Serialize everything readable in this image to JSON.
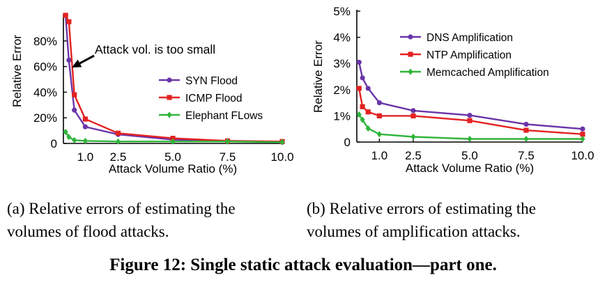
{
  "figure_caption": "Figure 12: Single static attack evaluation—part one.",
  "colors": {
    "syn": "#6a35a8",
    "icmp": "#e32222",
    "elephant": "#2fb53a"
  },
  "chart_data": [
    {
      "id": "a",
      "type": "line",
      "caption_lines": [
        "(a)  Relative errors of estimating the",
        "volumes of flood attacks."
      ],
      "xlabel": "Attack Volume Ratio (%)",
      "ylabel": "Relative Error",
      "xlim": [
        0,
        10
      ],
      "ylim": [
        0,
        100
      ],
      "xticks": [
        {
          "v": 1.0,
          "label": "1.0"
        },
        {
          "v": 2.5,
          "label": "2.5"
        },
        {
          "v": 5.0,
          "label": "5.0"
        },
        {
          "v": 7.5,
          "label": "7.5"
        },
        {
          "v": 10.0,
          "label": "10.0"
        }
      ],
      "yticks": [
        {
          "v": 0,
          "label": "0"
        },
        {
          "v": 20,
          "label": "20%"
        },
        {
          "v": 40,
          "label": "40%"
        },
        {
          "v": 60,
          "label": "60%"
        },
        {
          "v": 80,
          "label": "80%"
        }
      ],
      "grid": false,
      "legend": "center-right",
      "annotation": "Attack vol. is too small",
      "series": [
        {
          "name": "SYN Flood",
          "color_key": "syn",
          "marker": "circle",
          "x": [
            0.1,
            0.25,
            0.5,
            1.0,
            2.5,
            5.0,
            7.5,
            10.0
          ],
          "y": [
            100,
            65,
            26,
            13,
            7,
            3,
            2,
            1
          ]
        },
        {
          "name": "ICMP Flood",
          "color_key": "icmp",
          "marker": "square",
          "x": [
            0.1,
            0.25,
            0.5,
            1.0,
            2.5,
            5.0,
            7.5,
            10.0
          ],
          "y": [
            100,
            95,
            38,
            19,
            8,
            4,
            2,
            1.5
          ]
        },
        {
          "name": "Elephant FLows",
          "color_key": "elephant",
          "marker": "diamond",
          "x": [
            0.1,
            0.25,
            0.5,
            1.0,
            2.5,
            5.0,
            7.5,
            10.0
          ],
          "y": [
            9,
            5,
            2.5,
            2,
            1.5,
            1.5,
            1.5,
            1
          ]
        }
      ]
    },
    {
      "id": "b",
      "type": "line",
      "caption_lines": [
        "(b)  Relative errors of estimating the",
        "volumes of amplification attacks."
      ],
      "xlabel": "Attack Volume Ratio (%)",
      "ylabel": "Relative Error",
      "xlim": [
        0,
        10
      ],
      "ylim": [
        0,
        5
      ],
      "xticks": [
        {
          "v": 1.0,
          "label": "1.0"
        },
        {
          "v": 2.5,
          "label": "2.5"
        },
        {
          "v": 5.0,
          "label": "5.0"
        },
        {
          "v": 7.5,
          "label": "7.5"
        },
        {
          "v": 10.0,
          "label": "10.0"
        }
      ],
      "yticks": [
        {
          "v": 0,
          "label": "0"
        },
        {
          "v": 1,
          "label": "1%"
        },
        {
          "v": 2,
          "label": "2%"
        },
        {
          "v": 3,
          "label": "3%"
        },
        {
          "v": 4,
          "label": "4%"
        },
        {
          "v": 5,
          "label": "5%"
        }
      ],
      "grid": false,
      "legend": "top-right",
      "series": [
        {
          "name": "DNS Amplification",
          "color_key": "syn",
          "marker": "circle",
          "x": [
            0.1,
            0.25,
            0.5,
            1.0,
            2.5,
            5.0,
            7.5,
            10.0
          ],
          "y": [
            3.05,
            2.45,
            2.05,
            1.5,
            1.2,
            1.02,
            0.68,
            0.5
          ]
        },
        {
          "name": "NTP Amplification",
          "color_key": "icmp",
          "marker": "square",
          "x": [
            0.1,
            0.25,
            0.5,
            1.0,
            2.5,
            5.0,
            7.5,
            10.0
          ],
          "y": [
            2.05,
            1.35,
            1.15,
            1.0,
            1.0,
            0.82,
            0.45,
            0.3
          ]
        },
        {
          "name": "Memcached Amplification",
          "color_key": "elephant",
          "marker": "diamond",
          "x": [
            0.1,
            0.25,
            0.5,
            1.0,
            2.5,
            5.0,
            7.5,
            10.0
          ],
          "y": [
            1.05,
            0.85,
            0.52,
            0.3,
            0.2,
            0.12,
            0.12,
            0.12
          ]
        }
      ]
    }
  ]
}
